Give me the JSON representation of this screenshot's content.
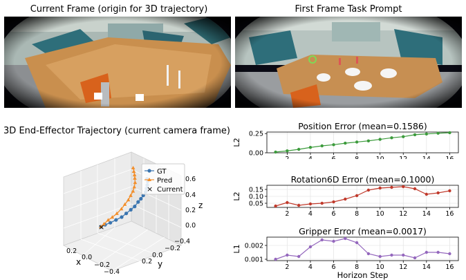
{
  "frames": {
    "current_title": "Current Frame (origin for 3D trajectory)",
    "prompt_title": "First Frame Task Prompt"
  },
  "chart_data": [
    {
      "type": "scatter3d",
      "title": "3D End-Effector Trajectory (current camera frame)",
      "xlabel": "x",
      "ylabel": "y",
      "zlabel": "z",
      "x_ticks": [
        "0.2",
        "0.0",
        "−0.2",
        "−0.4"
      ],
      "y_ticks": [
        "0.2",
        "0.0",
        "−0.2",
        "−0.4"
      ],
      "z_ticks": [
        "0.6",
        "0.4",
        "0.2",
        "0.0"
      ],
      "legend": {
        "position": "top-right",
        "entries": [
          "GT",
          "Pred",
          "Current"
        ]
      },
      "colors": {
        "gt": "#3a75b0",
        "pred": "#f28e2b",
        "current": "#000000"
      },
      "series": [
        {
          "name": "GT",
          "points": [
            [
              0,
              0,
              0
            ],
            [
              -0.03,
              0.02,
              0.02
            ],
            [
              -0.07,
              0.04,
              0.04
            ],
            [
              -0.11,
              0.07,
              0.07
            ],
            [
              -0.15,
              0.1,
              0.1
            ],
            [
              -0.18,
              0.13,
              0.14
            ],
            [
              -0.21,
              0.16,
              0.18
            ],
            [
              -0.23,
              0.2,
              0.22
            ],
            [
              -0.25,
              0.23,
              0.27
            ],
            [
              -0.26,
              0.27,
              0.31
            ],
            [
              -0.27,
              0.3,
              0.35
            ],
            [
              -0.28,
              0.33,
              0.39
            ],
            [
              -0.28,
              0.35,
              0.43
            ],
            [
              -0.28,
              0.37,
              0.47
            ],
            [
              -0.28,
              0.38,
              0.51
            ],
            [
              -0.27,
              0.39,
              0.54
            ]
          ]
        },
        {
          "name": "Pred",
          "points": [
            [
              0,
              0,
              0
            ],
            [
              -0.02,
              0.02,
              0.03
            ],
            [
              -0.05,
              0.04,
              0.07
            ],
            [
              -0.08,
              0.06,
              0.1
            ],
            [
              -0.11,
              0.09,
              0.14
            ],
            [
              -0.14,
              0.12,
              0.19
            ],
            [
              -0.16,
              0.15,
              0.24
            ],
            [
              -0.18,
              0.18,
              0.29
            ],
            [
              -0.19,
              0.21,
              0.34
            ],
            [
              -0.2,
              0.24,
              0.39
            ],
            [
              -0.2,
              0.27,
              0.44
            ],
            [
              -0.2,
              0.29,
              0.49
            ],
            [
              -0.19,
              0.31,
              0.54
            ],
            [
              -0.18,
              0.33,
              0.58
            ],
            [
              -0.17,
              0.34,
              0.62
            ],
            [
              -0.16,
              0.35,
              0.66
            ]
          ]
        },
        {
          "name": "Current",
          "points": [
            [
              0,
              0,
              0
            ]
          ]
        }
      ]
    },
    {
      "type": "line",
      "title": "Position Error (mean=0.1586)",
      "ylabel": "L2",
      "xlabel": "",
      "color": "#3c9b3c",
      "x": [
        1,
        2,
        3,
        4,
        5,
        6,
        7,
        8,
        9,
        10,
        11,
        12,
        13,
        14,
        15,
        16
      ],
      "values": [
        0.01,
        0.025,
        0.045,
        0.07,
        0.09,
        0.105,
        0.125,
        0.14,
        0.155,
        0.175,
        0.195,
        0.21,
        0.235,
        0.245,
        0.255,
        0.262
      ],
      "ylim": [
        0,
        0.27
      ],
      "yticks": [
        0,
        0.25
      ],
      "ytick_labels": [
        "0.00",
        "0.25"
      ],
      "xticks": [
        2,
        4,
        6,
        8,
        10,
        12,
        14,
        16
      ]
    },
    {
      "type": "line",
      "title": "Rotation6D Error (mean=0.1000)",
      "ylabel": "L2",
      "xlabel": "",
      "color": "#c0392b",
      "x": [
        1,
        2,
        3,
        4,
        5,
        6,
        7,
        8,
        9,
        10,
        11,
        12,
        13,
        14,
        15,
        16
      ],
      "values": [
        0.03,
        0.055,
        0.035,
        0.045,
        0.05,
        0.06,
        0.08,
        0.105,
        0.145,
        0.16,
        0.165,
        0.17,
        0.155,
        0.115,
        0.125,
        0.14
      ],
      "ylim": [
        0.02,
        0.18
      ],
      "yticks": [
        0.05,
        0.1,
        0.15
      ],
      "ytick_labels": [
        "0.05",
        "0.10",
        "0.15"
      ],
      "xticks": [
        2,
        4,
        6,
        8,
        10,
        12,
        14,
        16
      ]
    },
    {
      "type": "line",
      "title": "Gripper Error (mean=0.0017)",
      "ylabel": "L1",
      "xlabel": "Horizon Step",
      "color": "#9467bd",
      "x": [
        1,
        2,
        3,
        4,
        5,
        6,
        7,
        8,
        9,
        10,
        11,
        12,
        13,
        14,
        15,
        16
      ],
      "values": [
        0.001,
        0.0013,
        0.0012,
        0.0019,
        0.0024,
        0.0023,
        0.0025,
        0.0022,
        0.0014,
        0.0012,
        0.0013,
        0.0013,
        0.0011,
        0.0015,
        0.0015,
        0.0014
      ],
      "ylim": [
        0.0009,
        0.0026
      ],
      "yticks": [
        0.001,
        0.002
      ],
      "ytick_labels": [
        "0.001",
        "0.002"
      ],
      "xticks": [
        2,
        4,
        6,
        8,
        10,
        12,
        14,
        16
      ]
    }
  ]
}
